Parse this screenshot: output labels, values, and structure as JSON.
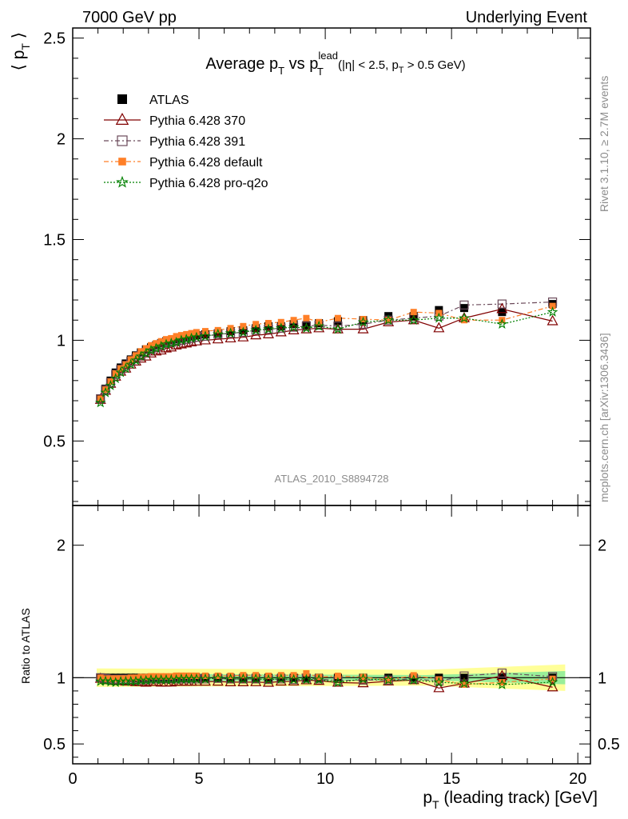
{
  "header": {
    "left": "7000 GeV pp",
    "right": "Underlying Event"
  },
  "side": {
    "rivet": "Rivet 3.1.10, ≥ 2.7M events",
    "mcplots": "mcplots.cern.ch [arXiv:1306.3436]"
  },
  "watermark": "ATLAS_2010_S8894728",
  "chart_data": {
    "type": "scatter",
    "title": {
      "main": "Average p",
      "sub1": "T",
      "vs": " vs p",
      "sup": "lead",
      "sub2": "T",
      "cut_a": " (|η| < 2.5, p",
      "cut_sub": "T",
      "cut_b": " > 0.5 GeV)"
    },
    "ylabel": {
      "open": "⟨ p",
      "sub": "T",
      "close": " ⟩"
    },
    "xlabel": {
      "pre": "p",
      "sub": "T",
      "post": " (leading track) [GeV]"
    },
    "ratio_ylabel": "Ratio to ATLAS",
    "xlim": [
      0,
      20.5
    ],
    "ylim": [
      0.18,
      2.55
    ],
    "ratio_ylim": [
      0.35,
      2.3
    ],
    "x_ticks": [
      "0",
      "5",
      "10",
      "15",
      "20"
    ],
    "y_ticks": [
      "0.5",
      "1",
      "1.5",
      "2",
      "2.5"
    ],
    "ratio_ticks": [
      "0.5",
      "1",
      "2"
    ],
    "legend_position": "top-left",
    "x": [
      1.1,
      1.3,
      1.5,
      1.7,
      1.9,
      2.1,
      2.3,
      2.5,
      2.7,
      2.9,
      3.1,
      3.3,
      3.5,
      3.7,
      3.9,
      4.1,
      4.3,
      4.5,
      4.7,
      4.9,
      5.25,
      5.75,
      6.25,
      6.75,
      7.25,
      7.75,
      8.25,
      8.75,
      9.25,
      9.75,
      10.5,
      11.5,
      12.5,
      13.5,
      14.5,
      15.5,
      17.0,
      19.0
    ],
    "series": [
      {
        "name": "ATLAS",
        "color": "#000000",
        "marker": "square-filled",
        "values": [
          0.71,
          0.76,
          0.8,
          0.84,
          0.865,
          0.885,
          0.905,
          0.925,
          0.94,
          0.955,
          0.965,
          0.975,
          0.985,
          0.995,
          1.0,
          1.005,
          1.01,
          1.015,
          1.02,
          1.025,
          1.03,
          1.035,
          1.045,
          1.05,
          1.06,
          1.07,
          1.07,
          1.08,
          1.075,
          1.085,
          1.095,
          1.1,
          1.12,
          1.12,
          1.15,
          1.16,
          1.14,
          1.18
        ]
      },
      {
        "name": "Pythia 6.428 370",
        "color": "#800000",
        "marker": "triangle-open",
        "dash": "",
        "values": [
          0.705,
          0.75,
          0.785,
          0.82,
          0.845,
          0.86,
          0.88,
          0.895,
          0.91,
          0.92,
          0.935,
          0.945,
          0.95,
          0.96,
          0.965,
          0.975,
          0.98,
          0.985,
          0.99,
          0.995,
          1.0,
          1.005,
          1.01,
          1.015,
          1.025,
          1.03,
          1.04,
          1.05,
          1.055,
          1.06,
          1.055,
          1.055,
          1.09,
          1.1,
          1.06,
          1.11,
          1.155,
          1.095
        ]
      },
      {
        "name": "Pythia 6.428 391",
        "color": "#6b4a5a",
        "marker": "square-open",
        "dash": "6,3,2,3",
        "values": [
          0.71,
          0.755,
          0.79,
          0.83,
          0.855,
          0.875,
          0.895,
          0.91,
          0.925,
          0.94,
          0.955,
          0.965,
          0.975,
          0.985,
          0.99,
          0.995,
          1.0,
          1.005,
          1.01,
          1.015,
          1.02,
          1.03,
          1.035,
          1.04,
          1.05,
          1.055,
          1.06,
          1.065,
          1.07,
          1.075,
          1.07,
          1.08,
          1.1,
          1.11,
          1.12,
          1.175,
          1.18,
          1.19
        ]
      },
      {
        "name": "Pythia 6.428 default",
        "color": "#ff7f27",
        "marker": "square-filled-small",
        "dash": "6,3,2,3",
        "values": [
          0.71,
          0.755,
          0.795,
          0.835,
          0.86,
          0.88,
          0.905,
          0.925,
          0.945,
          0.96,
          0.975,
          0.985,
          0.995,
          1.005,
          1.01,
          1.02,
          1.025,
          1.03,
          1.035,
          1.04,
          1.045,
          1.05,
          1.06,
          1.07,
          1.08,
          1.085,
          1.09,
          1.1,
          1.11,
          1.09,
          1.11,
          1.105,
          1.1,
          1.14,
          1.135,
          1.1,
          1.1,
          1.17
        ]
      },
      {
        "name": "Pythia 6.428 pro-q2o",
        "color": "#008000",
        "marker": "star",
        "dash": "2,2",
        "values": [
          0.69,
          0.74,
          0.775,
          0.81,
          0.84,
          0.86,
          0.88,
          0.9,
          0.92,
          0.935,
          0.95,
          0.96,
          0.97,
          0.98,
          0.985,
          0.99,
          1.0,
          1.005,
          1.01,
          1.015,
          1.02,
          1.03,
          1.035,
          1.04,
          1.05,
          1.055,
          1.06,
          1.065,
          1.06,
          1.07,
          1.055,
          1.09,
          1.1,
          1.1,
          1.11,
          1.11,
          1.08,
          1.14
        ]
      }
    ]
  }
}
